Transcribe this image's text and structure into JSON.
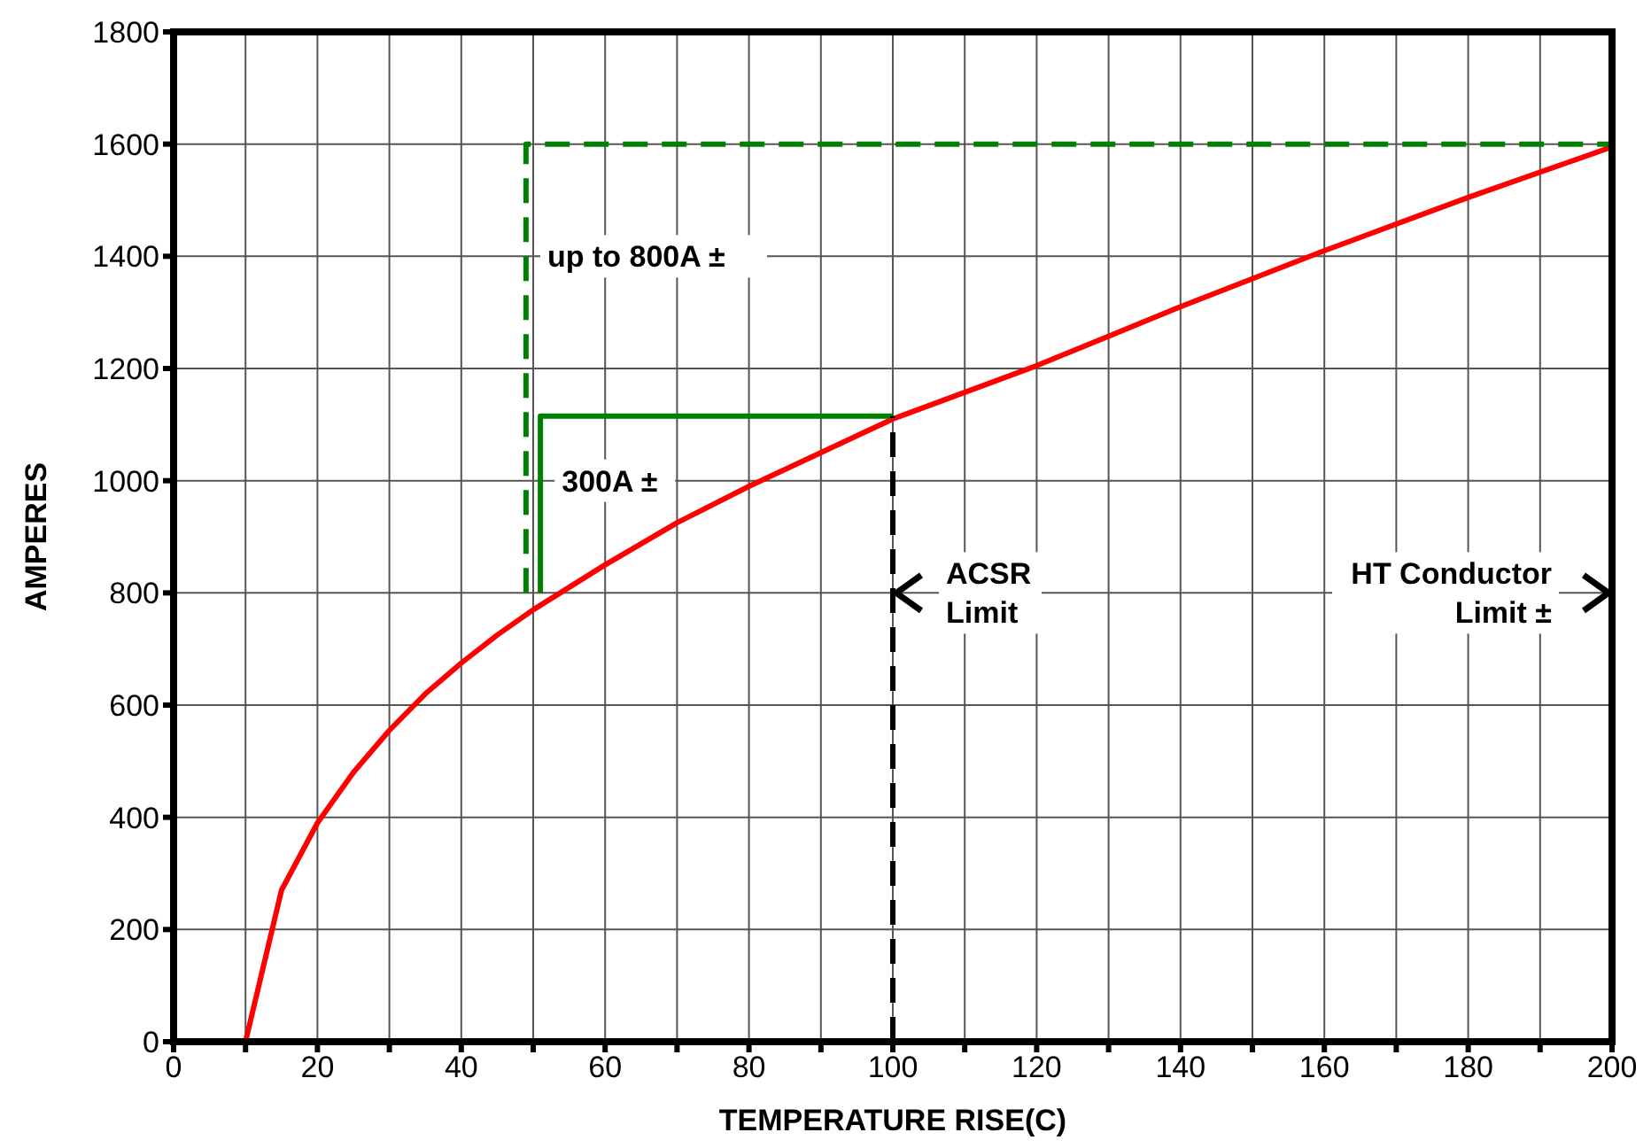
{
  "chart_data": {
    "type": "line",
    "xlabel": "TEMPERATURE RISE(C)",
    "ylabel": "AMPERES",
    "xlim": [
      0,
      200
    ],
    "xticks": [
      0,
      {
        "value": 10,
        "label": null
      },
      20,
      {
        "value": 30,
        "label": null
      },
      40,
      {
        "value": 50,
        "label": null
      },
      60,
      {
        "value": 70,
        "label": null
      },
      80,
      {
        "value": 90,
        "label": null
      },
      100,
      {
        "value": 110,
        "label": null
      },
      120,
      {
        "value": 130,
        "label": null
      },
      140,
      {
        "value": 150,
        "label": null
      },
      160,
      {
        "value": 170,
        "label": null
      },
      180,
      {
        "value": 190,
        "label": null
      },
      200
    ],
    "ylim": [
      0,
      1800
    ],
    "yticks": [
      0,
      200,
      400,
      600,
      800,
      1000,
      1200,
      1400,
      1600,
      1800
    ],
    "grid": true,
    "marker": "none",
    "series": [
      {
        "color": "#ff0000",
        "line_style": "solid",
        "x": [
          0,
          10,
          15,
          20,
          25,
          30,
          35,
          40,
          45,
          50,
          60,
          70,
          80,
          90,
          100,
          120,
          140,
          160,
          180,
          200
        ],
        "values": [
          0,
          0,
          270,
          390,
          480,
          555,
          620,
          675,
          725,
          770,
          850,
          925,
          990,
          1050,
          1110,
          1205,
          1310,
          1410,
          1505,
          1595
        ]
      },
      {
        "color": "#008000",
        "line_style": "dashed",
        "x": [
          49,
          49,
          200
        ],
        "values": [
          800,
          1600,
          1600
        ]
      },
      {
        "color": "#008000",
        "line_style": "solid",
        "x": [
          51,
          51,
          100
        ],
        "values": [
          800,
          1115,
          1115
        ]
      },
      {
        "color": "#000000",
        "line_style": "dashed",
        "x": [
          100,
          100
        ],
        "values": [
          0,
          1115
        ]
      }
    ],
    "annotations": [
      {
        "text": "up to 800A ±",
        "x": 50,
        "y": 1400
      },
      {
        "text": "300A ±",
        "x": 52,
        "y": 1000
      },
      {
        "text": "ACSR\nLimit",
        "x": 100,
        "y": 800
      },
      "HT Conductor\nLimit ±"
    ]
  }
}
